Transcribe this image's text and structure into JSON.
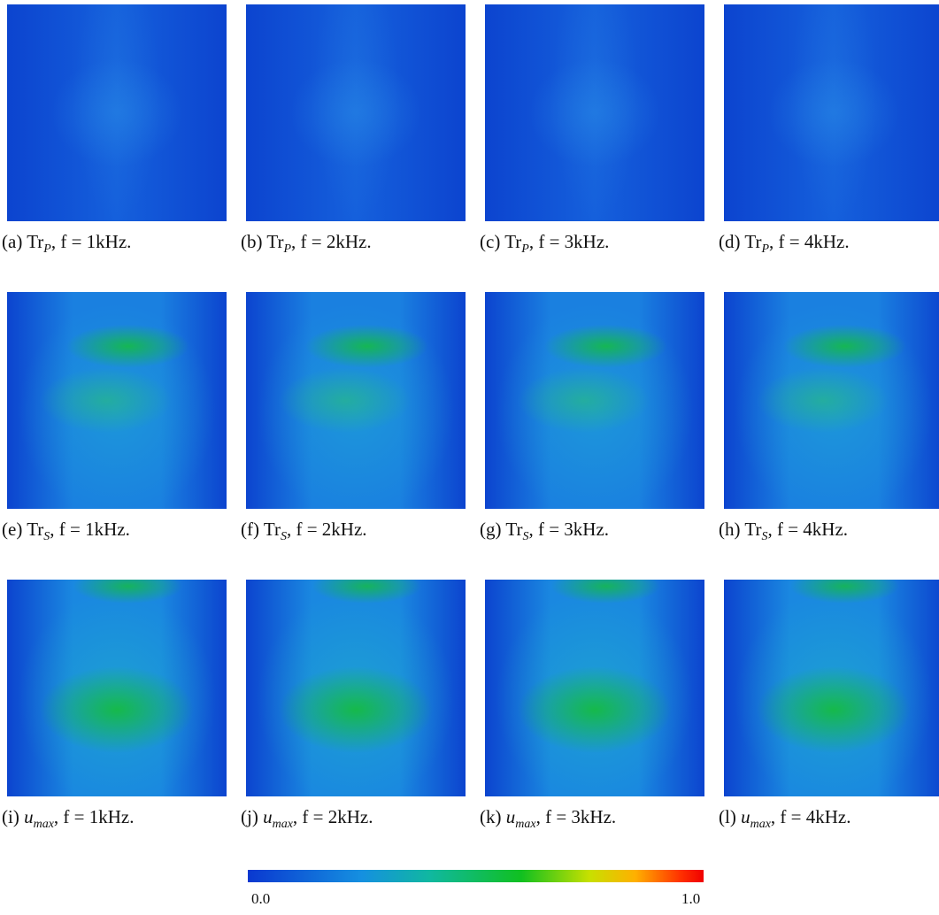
{
  "panels": [
    {
      "tag": "(a)",
      "main": "Tr",
      "sub": "P",
      "tail": ", f = 1kHz."
    },
    {
      "tag": "(b)",
      "main": "Tr",
      "sub": "P",
      "tail": ", f = 2kHz."
    },
    {
      "tag": "(c)",
      "main": "Tr",
      "sub": "P",
      "tail": ", f = 3kHz."
    },
    {
      "tag": "(d)",
      "main": "Tr",
      "sub": "P",
      "tail": ", f = 4kHz."
    },
    {
      "tag": "(e)",
      "main": "Tr",
      "sub": "S",
      "tail": ", f = 1kHz."
    },
    {
      "tag": "(f)",
      "main": "Tr",
      "sub": "S",
      "tail": ", f = 2kHz."
    },
    {
      "tag": "(g)",
      "main": "Tr",
      "sub": "S",
      "tail": ", f = 3kHz."
    },
    {
      "tag": "(h)",
      "main": "Tr",
      "sub": "S",
      "tail": ", f = 4kHz."
    },
    {
      "tag": "(i)",
      "main": "u",
      "sub": "max",
      "tail": ", f = 1kHz."
    },
    {
      "tag": "(j)",
      "main": "u",
      "sub": "max",
      "tail": ", f = 2kHz."
    },
    {
      "tag": "(k)",
      "main": "u",
      "sub": "max",
      "tail": ", f = 3kHz."
    },
    {
      "tag": "(l)",
      "main": "u",
      "sub": "max",
      "tail": ", f = 4kHz."
    }
  ],
  "colorbar": {
    "min_label": "0.0",
    "max_label": "1.0"
  }
}
